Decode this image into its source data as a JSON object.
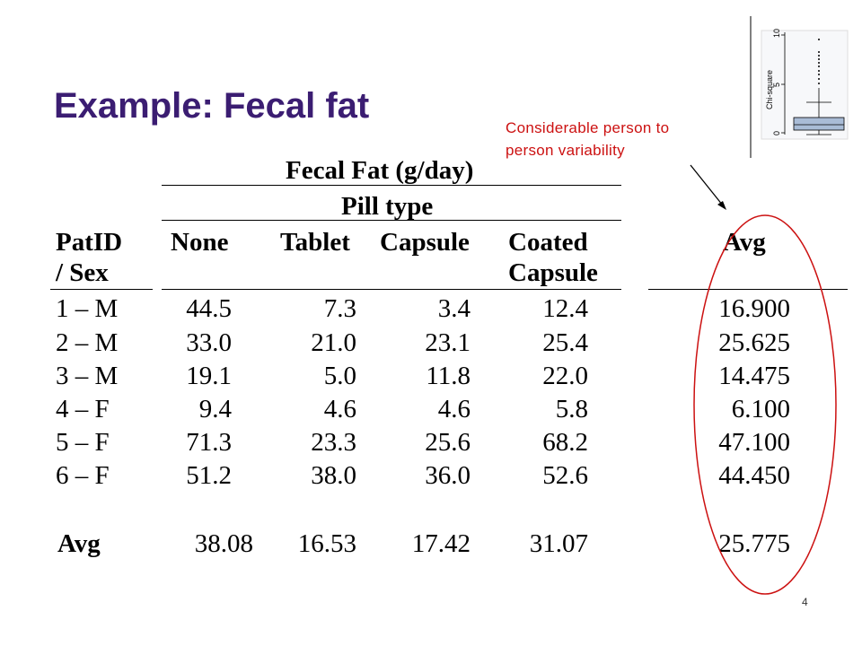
{
  "slide": {
    "title": "Example:  Fecal fat",
    "page_number": "4",
    "title_color": "#3b1d72",
    "annotation_color": "#cc1111"
  },
  "annotation": {
    "line1": "Considerable person to",
    "line2": "person variability"
  },
  "table": {
    "caption": "Fecal Fat (g/day)",
    "group_header": "Pill type",
    "patid_header_1": "PatID",
    "patid_header_2": "/ Sex",
    "columns": [
      "None",
      "Tablet",
      "Capsule",
      "Coated",
      "Avg"
    ],
    "coated_line2": "Capsule",
    "rows": [
      {
        "patient": "1 – M",
        "values": [
          "44.5",
          "7.3",
          "3.4",
          "12.4"
        ],
        "avg": "16.900"
      },
      {
        "patient": "2 – M",
        "values": [
          "33.0",
          "21.0",
          "23.1",
          "25.4"
        ],
        "avg": "25.625"
      },
      {
        "patient": "3 – M",
        "values": [
          "19.1",
          "5.0",
          "11.8",
          "22.0"
        ],
        "avg": "14.475"
      },
      {
        "patient": "4 – F",
        "values": [
          "9.4",
          "4.6",
          "4.6",
          "5.8"
        ],
        "avg": "6.100"
      },
      {
        "patient": "5 – F",
        "values": [
          "71.3",
          "23.3",
          "25.6",
          "68.2"
        ],
        "avg": "47.100"
      },
      {
        "patient": "6 – F",
        "values": [
          "51.2",
          "38.0",
          "36.0",
          "52.6"
        ],
        "avg": "44.450"
      }
    ],
    "avg_row": {
      "label": "Avg",
      "values": [
        "38.08",
        "16.53",
        "17.42",
        "31.07"
      ],
      "avg": "25.775"
    }
  },
  "inset_plot": {
    "ylabel": "Chi-square",
    "ticks": [
      "0",
      "5",
      "10"
    ],
    "box_color": "#a9bcd6"
  }
}
